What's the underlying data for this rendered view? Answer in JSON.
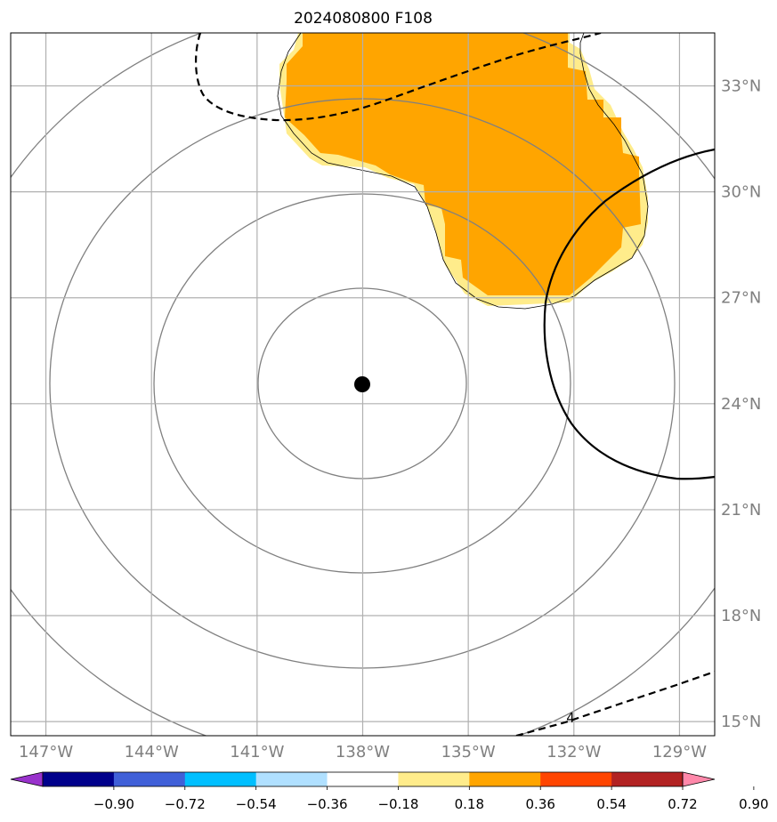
{
  "title": "2024080800 F108",
  "map": {
    "lon_range": [
      -148,
      -128
    ],
    "lat_range": [
      14.6,
      34.5
    ],
    "lon_ticks": [
      {
        "value": -147,
        "label": "147°W"
      },
      {
        "value": -144,
        "label": "144°W"
      },
      {
        "value": -141,
        "label": "141°W"
      },
      {
        "value": -138,
        "label": "138°W"
      },
      {
        "value": -135,
        "label": "135°W"
      },
      {
        "value": -132,
        "label": "132°W"
      },
      {
        "value": -129,
        "label": "129°W"
      }
    ],
    "lat_ticks": [
      {
        "value": 15,
        "label": "15°N"
      },
      {
        "value": 18,
        "label": "18°N"
      },
      {
        "value": 21,
        "label": "21°N"
      },
      {
        "value": 24,
        "label": "24°N"
      },
      {
        "value": 27,
        "label": "27°N"
      },
      {
        "value": 30,
        "label": "30°N"
      },
      {
        "value": 33,
        "label": "33°N"
      }
    ],
    "grid": true,
    "center": {
      "lon": -137.9,
      "lat": 24.4
    },
    "contour_label": "4"
  },
  "colorbar": {
    "ticks": [
      "−0.90",
      "−0.72",
      "−0.54",
      "−0.36",
      "−0.18",
      "0.18",
      "0.36",
      "0.54",
      "0.72",
      "0.90"
    ],
    "colors": [
      "#9932cc",
      "#00008b",
      "#4060d8",
      "#00bfff",
      "#b0e0ff",
      "#ffffff",
      "#ffec8b",
      "#ffa500",
      "#ff4500",
      "#b22222",
      "#ff88aa"
    ]
  }
}
